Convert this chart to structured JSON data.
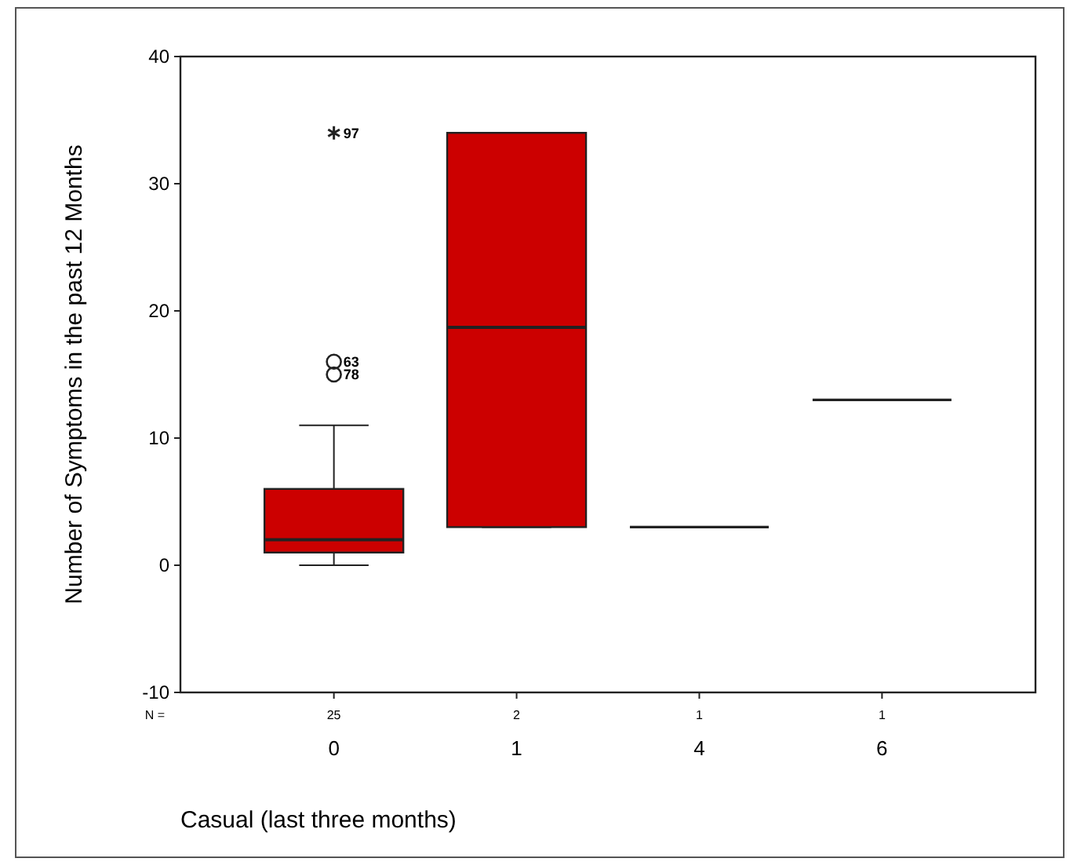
{
  "chart_data": {
    "type": "box",
    "xlabel": "Casual (last three months)",
    "ylabel": "Number of Symptoms in the past 12 Months",
    "categories": [
      "0",
      "1",
      "4",
      "6"
    ],
    "series": [
      {
        "colors": [
          "#cc0000",
          "#cc0000",
          "#222222",
          "#222222"
        ],
        "boxes": [
          {
            "low": 0,
            "q1": 1,
            "median": 2,
            "q3": 6,
            "high": 11,
            "outliers": [
              16,
              15,
              34
            ]
          },
          {
            "low": 3,
            "q1": 3,
            "median": 18.7,
            "q3": 34,
            "high": 34
          },
          {
            "low": 3,
            "q1": 3,
            "median": 3,
            "q3": 3,
            "high": 3
          },
          {
            "low": 13,
            "q1": 13,
            "median": 13,
            "q3": 13,
            "high": 13
          }
        ]
      }
    ],
    "ylim": [
      -10,
      40
    ],
    "yticks": [
      -10,
      0,
      10,
      20,
      30,
      40
    ],
    "annotations": [
      "N =",
      "25",
      "2",
      "1",
      "1",
      "63",
      "78",
      "97"
    ]
  }
}
